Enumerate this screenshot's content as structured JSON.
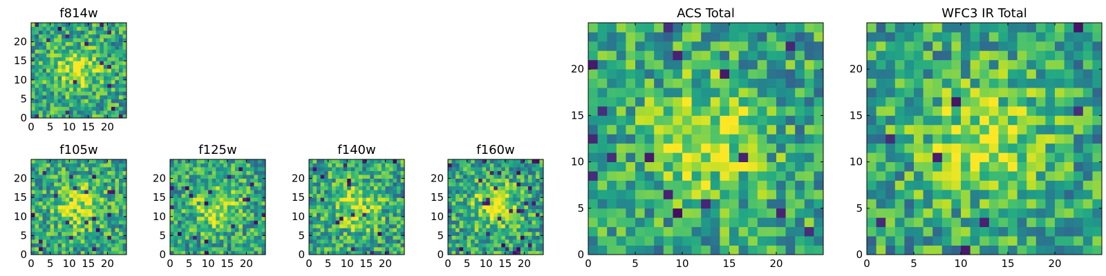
{
  "chart_data": [
    {
      "type": "heatmap",
      "title": "f814w",
      "xticks": [
        0,
        5,
        10,
        15,
        20
      ],
      "yticks": [
        0,
        5,
        10,
        15,
        20
      ],
      "xlim": [
        0,
        25
      ],
      "ylim": [
        0,
        25
      ],
      "grid_size": 25,
      "colormap": "viridis",
      "seed": 11
    },
    {
      "type": "heatmap",
      "title": "f105w",
      "xticks": [
        0,
        5,
        10,
        15,
        20
      ],
      "yticks": [
        0,
        5,
        10,
        15,
        20
      ],
      "xlim": [
        0,
        25
      ],
      "ylim": [
        0,
        25
      ],
      "grid_size": 25,
      "colormap": "viridis",
      "seed": 23
    },
    {
      "type": "heatmap",
      "title": "f125w",
      "xticks": [
        0,
        5,
        10,
        15,
        20
      ],
      "yticks": [
        0,
        5,
        10,
        15,
        20
      ],
      "xlim": [
        0,
        25
      ],
      "ylim": [
        0,
        25
      ],
      "grid_size": 25,
      "colormap": "viridis",
      "seed": 37
    },
    {
      "type": "heatmap",
      "title": "f140w",
      "xticks": [
        0,
        5,
        10,
        15,
        20
      ],
      "yticks": [
        0,
        5,
        10,
        15,
        20
      ],
      "xlim": [
        0,
        25
      ],
      "ylim": [
        0,
        25
      ],
      "grid_size": 25,
      "colormap": "viridis",
      "seed": 41
    },
    {
      "type": "heatmap",
      "title": "f160w",
      "xticks": [
        0,
        5,
        10,
        15,
        20
      ],
      "yticks": [
        0,
        5,
        10,
        15,
        20
      ],
      "xlim": [
        0,
        25
      ],
      "ylim": [
        0,
        25
      ],
      "grid_size": 25,
      "colormap": "viridis",
      "seed": 53
    },
    {
      "type": "heatmap",
      "title": "ACS Total",
      "xticks": [
        0,
        5,
        10,
        15,
        20
      ],
      "yticks": [
        0,
        5,
        10,
        15,
        20
      ],
      "xlim": [
        0,
        25
      ],
      "ylim": [
        0,
        25
      ],
      "grid_size": 25,
      "colormap": "viridis",
      "seed": 67
    },
    {
      "type": "heatmap",
      "title": "WFC3 IR Total",
      "xticks": [
        0,
        5,
        10,
        15,
        20
      ],
      "yticks": [
        0,
        5,
        10,
        15,
        20
      ],
      "xlim": [
        0,
        25
      ],
      "ylim": [
        0,
        25
      ],
      "grid_size": 25,
      "colormap": "viridis",
      "seed": 79
    }
  ]
}
